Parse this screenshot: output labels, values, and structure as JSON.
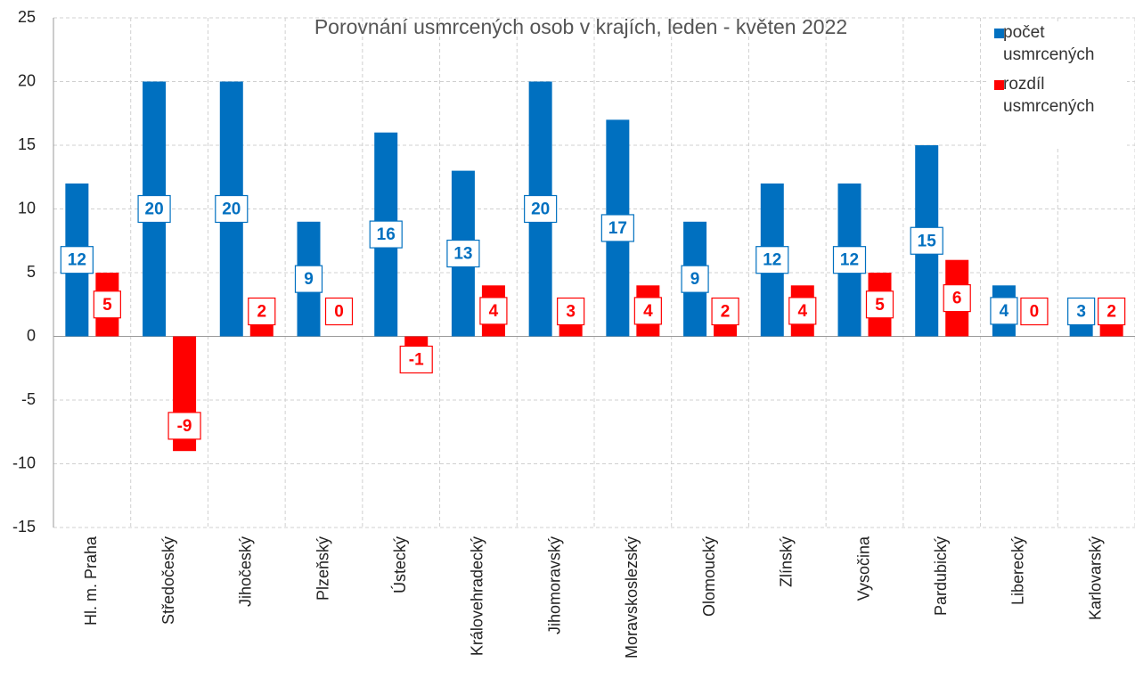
{
  "chart_data": {
    "type": "bar",
    "title": "Porovnání usmrcených osob v krajích, leden - květen 2022",
    "categories": [
      "Hl. m. Praha",
      "Středočeský",
      "Jihočeský",
      "Plzeňský",
      "Ústecký",
      "Královehradecký",
      "Jihomoravský",
      "Moravskoslezský",
      "Olomoucký",
      "Zlínský",
      "Vysočina",
      "Pardubický",
      "Liberecký",
      "Karlovarský"
    ],
    "series": [
      {
        "name": "počet usmrcených",
        "color": "#0070c0",
        "values": [
          12,
          20,
          20,
          9,
          16,
          13,
          20,
          17,
          9,
          12,
          12,
          15,
          4,
          3
        ]
      },
      {
        "name": "rozdíl usmrcených",
        "color": "#ff0000",
        "values": [
          5,
          -9,
          2,
          0,
          -1,
          4,
          3,
          4,
          2,
          4,
          5,
          6,
          0,
          2
        ]
      }
    ],
    "ylim": [
      -15,
      25
    ],
    "yticks": [
      -15,
      -10,
      -5,
      0,
      5,
      10,
      15,
      20,
      25
    ],
    "grid": true,
    "legend": "top-right"
  }
}
